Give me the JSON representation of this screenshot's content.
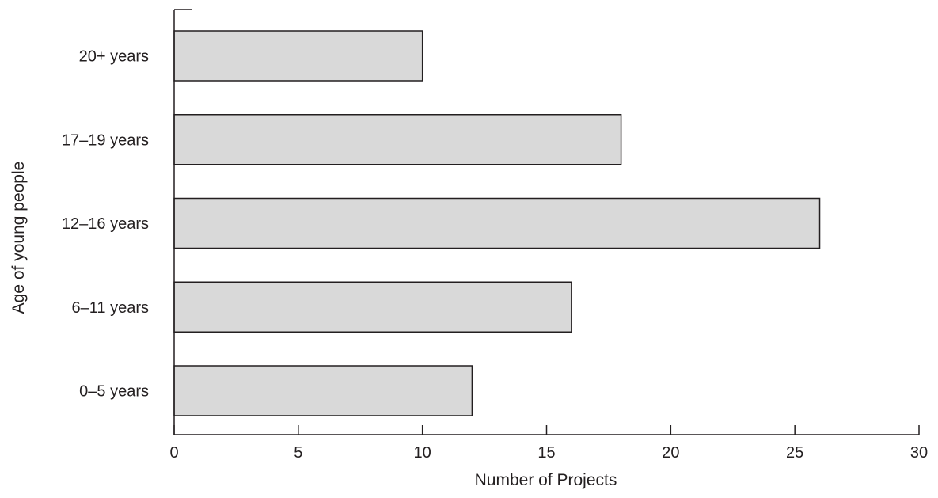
{
  "chart_data": {
    "type": "bar",
    "orientation": "horizontal",
    "categories": [
      "0–5 years",
      "6–11 years",
      "12–16 years",
      "17–19 years",
      "20+ years"
    ],
    "values": [
      12,
      16,
      26,
      18,
      10
    ],
    "xlabel": "Number of Projects",
    "ylabel": "Age of young people",
    "xlim": [
      0,
      30
    ],
    "xticks": [
      0,
      5,
      10,
      15,
      20,
      25,
      30
    ],
    "grid": false,
    "bar_color": "#d9d9d9",
    "bar_edge_color": "#231f20"
  }
}
